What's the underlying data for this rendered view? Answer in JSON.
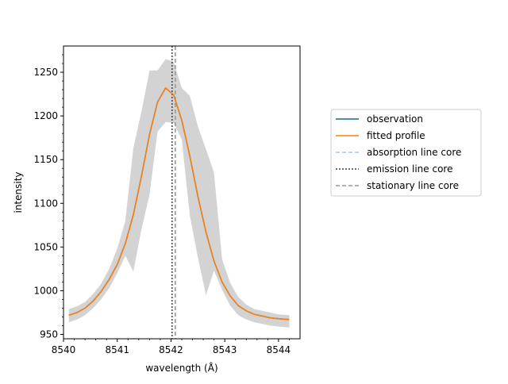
{
  "chart_data": {
    "type": "line",
    "title": "",
    "xlabel": "wavelength (Å)",
    "ylabel": "intensity",
    "xlim": [
      8540.0,
      8544.4
    ],
    "ylim": [
      945,
      1280
    ],
    "xticks": [
      8540,
      8541,
      8542,
      8543,
      8544
    ],
    "yticks": [
      950,
      1000,
      1050,
      1100,
      1150,
      1200,
      1250
    ],
    "grid": false,
    "legend_position": "outside right",
    "colors": {
      "observation": "#0a6e8c",
      "fitted": "#ff7f0e",
      "band": "#d3d3d3",
      "absorption": "#a6c8e8",
      "emission": "#404040",
      "stationary": "#999999"
    },
    "x": [
      8540.1,
      8540.25,
      8540.4,
      8540.55,
      8540.7,
      8540.85,
      8541.0,
      8541.15,
      8541.3,
      8541.45,
      8541.6,
      8541.75,
      8541.9,
      8542.05,
      8542.2,
      8542.35,
      8542.5,
      8542.65,
      8542.8,
      8542.95,
      8543.1,
      8543.25,
      8543.4,
      8543.55,
      8543.7,
      8543.85,
      8544.0,
      8544.2
    ],
    "series": [
      {
        "name": "observation",
        "values": [
          972,
          975,
          980,
          988,
          999,
          1013,
          1030,
          1054,
          1087,
          1131,
          1179,
          1216,
          1232,
          1224,
          1195,
          1154,
          1108,
          1067,
          1034,
          1010,
          994,
          983,
          977,
          973,
          971,
          969,
          968,
          967
        ]
      },
      {
        "name": "fitted profile",
        "values": [
          972,
          975,
          980,
          988,
          999,
          1013,
          1030,
          1054,
          1087,
          1131,
          1179,
          1216,
          1232,
          1224,
          1195,
          1154,
          1108,
          1067,
          1034,
          1010,
          994,
          983,
          977,
          973,
          971,
          969,
          968,
          967
        ]
      }
    ],
    "band": {
      "upper": [
        979,
        982,
        987,
        996,
        1008,
        1025,
        1048,
        1080,
        1163,
        1205,
        1252,
        1252,
        1265,
        1262,
        1232,
        1223,
        1188,
        1162,
        1135,
        1036,
        1009,
        993,
        984,
        979,
        977,
        975,
        973,
        972
      ],
      "lower": [
        964,
        967,
        972,
        980,
        990,
        1003,
        1020,
        1040,
        1022,
        1070,
        1110,
        1182,
        1193,
        1192,
        1173,
        1086,
        1038,
        995,
        1023,
        1001,
        983,
        972,
        967,
        964,
        962,
        960,
        959,
        958
      ]
    },
    "vlines": [
      {
        "name": "absorption line core",
        "x": 8542.08
      },
      {
        "name": "emission line core",
        "x": 8542.02
      },
      {
        "name": "stationary line core",
        "x": 8542.08
      }
    ],
    "legend": [
      "observation",
      "fitted profile",
      "absorption line core",
      "emission line core",
      "stationary line core"
    ]
  }
}
